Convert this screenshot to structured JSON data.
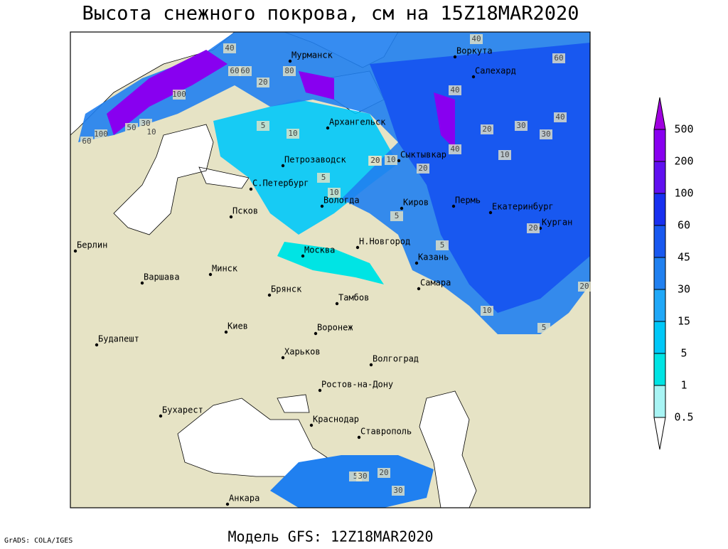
{
  "header": {
    "title": "Высота снежного покрова, см на 15Z18MAR2020"
  },
  "footer": {
    "credit": "GrADS: COLA/IGES",
    "model": "Модель GFS: 12Z18MAR2020"
  },
  "cities": [
    "Мурманск",
    "Воркута",
    "Салехард",
    "Архангельск",
    "Петрозаводск",
    "Сыктывкар",
    "С.Петербург",
    "Вологда",
    "Киров",
    "Пермь",
    "Екатеринбург",
    "Курган",
    "Псков",
    "Берлин",
    "Москва",
    "Н.Новгород",
    "Казань",
    "Минск",
    "Варшава",
    "Брянск",
    "Самара",
    "Тамбов",
    "Киев",
    "Воронеж",
    "Будапешт",
    "Харьков",
    "Волгоград",
    "Ростов-на-Дону",
    "Бухарест",
    "Краснодар",
    "Ставрополь",
    "Анкара"
  ],
  "contour_labels": [
    "40",
    "60",
    "80",
    "20",
    "100",
    "50",
    "10",
    "60",
    "100",
    "5",
    "30",
    "10",
    "20",
    "40",
    "30",
    "20",
    "10",
    "5",
    "10",
    "5",
    "20",
    "40",
    "60",
    "30",
    "20",
    "5",
    "10",
    "20",
    "5",
    "10",
    "20",
    "5",
    "30",
    "20",
    "30",
    "60",
    "40",
    "40"
  ],
  "legend": {
    "levels": [
      {
        "value": 500,
        "color": "#a000e0"
      },
      {
        "value": 200,
        "color": "#8800f0"
      },
      {
        "value": 100,
        "color": "#6010f0"
      },
      {
        "value": 60,
        "color": "#1830f0"
      },
      {
        "value": 45,
        "color": "#1858f0"
      },
      {
        "value": 30,
        "color": "#2080f0"
      },
      {
        "value": 15,
        "color": "#20a8f8"
      },
      {
        "value": 5,
        "color": "#00c8f8"
      },
      {
        "value": 1,
        "color": "#00e4e4"
      },
      {
        "value": 0.5,
        "color": "#a8f4f4"
      }
    ]
  }
}
